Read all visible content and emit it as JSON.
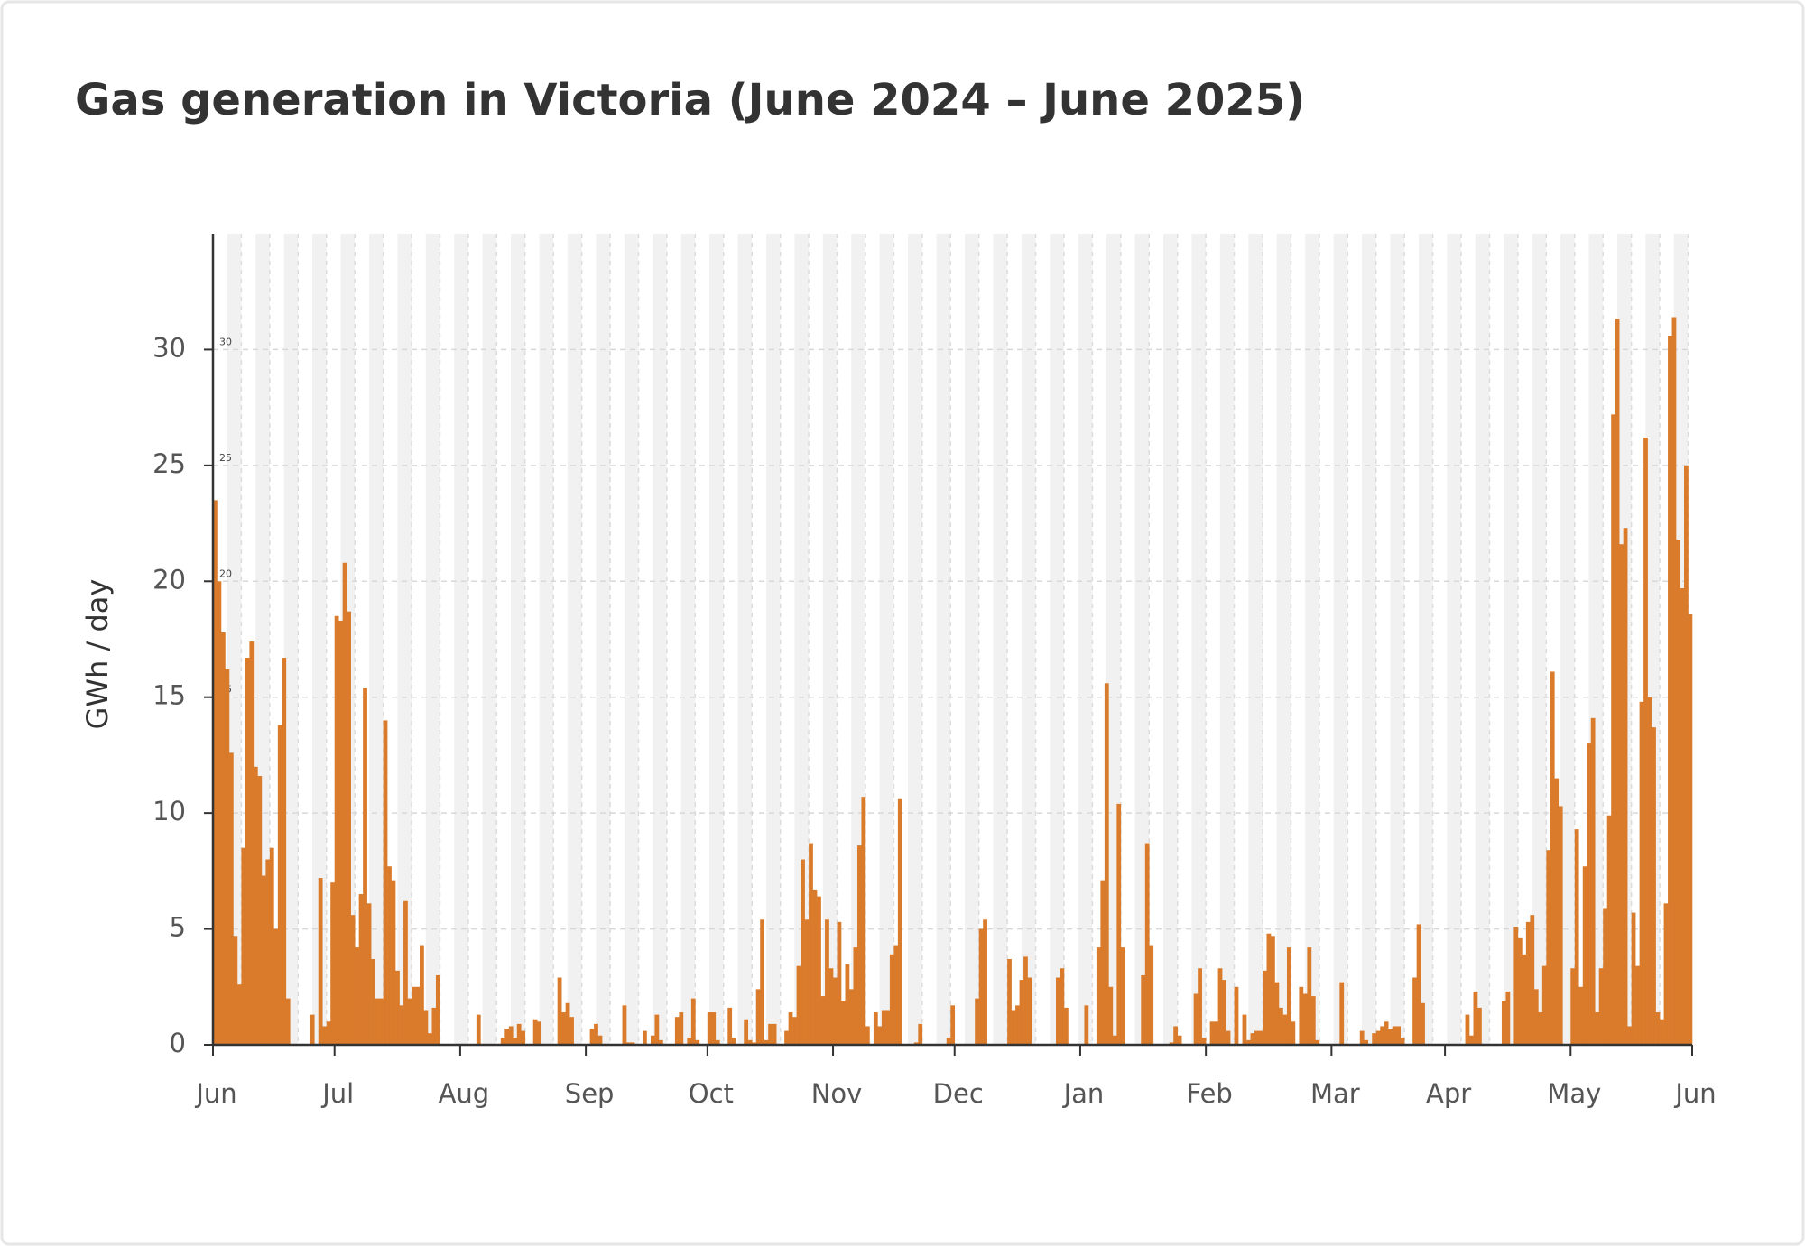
{
  "chart_data": {
    "type": "bar",
    "title": "Gas generation in Victoria (June 2024 – June 2025)",
    "y_label": "GWh / day",
    "color": "#d97b2b",
    "grid": true,
    "xlim": [
      0,
      365
    ],
    "xticks": [
      {
        "value": 0,
        "label": "Jun"
      },
      {
        "value": 30,
        "label": "Jul"
      },
      {
        "value": 61,
        "label": "Aug"
      },
      {
        "value": 92,
        "label": "Sep"
      },
      {
        "value": 122,
        "label": "Oct"
      },
      {
        "value": 153,
        "label": "Nov"
      },
      {
        "value": 183,
        "label": "Dec"
      },
      {
        "value": 214,
        "label": "Jan"
      },
      {
        "value": 245,
        "label": "Feb"
      },
      {
        "value": 276,
        "label": "Mar"
      },
      {
        "value": 304,
        "label": "Apr"
      },
      {
        "value": 335,
        "label": "May"
      },
      {
        "value": 365,
        "label": "Jun"
      }
    ],
    "ylim": [
      0,
      35
    ],
    "yticks": [
      0,
      5,
      10,
      15,
      20,
      25,
      30
    ],
    "values": [
      23.5,
      20,
      17.8,
      16.2,
      12.6,
      4.7,
      2.6,
      8.5,
      16.7,
      17.4,
      12,
      11.6,
      7.3,
      8,
      8.5,
      5,
      13.8,
      16.7,
      2,
      0,
      0,
      0,
      0,
      0,
      1.3,
      0,
      7.2,
      0.8,
      1,
      7,
      18.5,
      18.3,
      20.8,
      18.7,
      5.6,
      4.2,
      6.5,
      15.4,
      6.1,
      3.7,
      2,
      2,
      14,
      7.7,
      7.1,
      3.2,
      1.7,
      6.2,
      2,
      2.5,
      2.5,
      4.3,
      1.5,
      0.5,
      1.6,
      3,
      0,
      0,
      0,
      0,
      0,
      0,
      0,
      0,
      0,
      1.3,
      0,
      0,
      0,
      0,
      0,
      0.3,
      0.7,
      0.8,
      0.3,
      0.9,
      0.6,
      0,
      0,
      1.1,
      1,
      0,
      0,
      0,
      0,
      2.9,
      1.4,
      1.8,
      1.2,
      0,
      0,
      0,
      0,
      0.7,
      0.9,
      0.4,
      0,
      0,
      0,
      0,
      0,
      1.7,
      0.1,
      0.1,
      0,
      0,
      0.6,
      0,
      0.4,
      1.3,
      0.2,
      0,
      0,
      0,
      1.2,
      1.4,
      0,
      0.3,
      2,
      0.2,
      0,
      0,
      1.4,
      1.4,
      0.2,
      0,
      0,
      1.6,
      0.3,
      0,
      0,
      1.1,
      0.2,
      0.1,
      2.4,
      5.4,
      0.2,
      0.9,
      0.9,
      0,
      0,
      0.6,
      1.4,
      1.2,
      3.4,
      8,
      5.4,
      8.7,
      6.7,
      6.4,
      2.1,
      5.4,
      3.3,
      2.9,
      5.3,
      1.9,
      3.5,
      2.4,
      4.2,
      8.6,
      10.7,
      0.8,
      0,
      1.4,
      0.8,
      1.5,
      1.5,
      3.9,
      4.3,
      10.6,
      0,
      0,
      0,
      0.1,
      0.9,
      0,
      0,
      0,
      0,
      0,
      0,
      0.3,
      1.7,
      0,
      0,
      0,
      0,
      0,
      2,
      5,
      5.4,
      0,
      0,
      0,
      0,
      0,
      3.7,
      1.5,
      1.7,
      2.8,
      3.8,
      2.9,
      0,
      0,
      0,
      0,
      0,
      0,
      2.9,
      3.3,
      1.6,
      0,
      0,
      0,
      0,
      1.7,
      0,
      0,
      4.2,
      7.1,
      15.6,
      2.5,
      0.4,
      10.4,
      4.2,
      0,
      0,
      0,
      0,
      3,
      8.7,
      4.3,
      0,
      0,
      0,
      0,
      0.1,
      0.8,
      0.4,
      0,
      0,
      0,
      2.2,
      3.3,
      0.3,
      0,
      1,
      1,
      3.3,
      2.8,
      0.6,
      0,
      2.5,
      0,
      1.3,
      0.2,
      0.5,
      0.6,
      0.6,
      3.2,
      4.8,
      4.7,
      2.7,
      1.6,
      1.3,
      4.2,
      1,
      0,
      2.5,
      2.2,
      4.2,
      2.1,
      0.2,
      0,
      0,
      0,
      0,
      0,
      2.7,
      0,
      0,
      0,
      0,
      0.6,
      0.2,
      0,
      0.5,
      0.6,
      0.8,
      1,
      0.7,
      0.8,
      0.8,
      0.3,
      0,
      0,
      2.9,
      5.2,
      1.8,
      0,
      0,
      0,
      0,
      0,
      0,
      0,
      0,
      0,
      0,
      1.3,
      0.4,
      2.3,
      1.6,
      0,
      0,
      0,
      0,
      0,
      1.9,
      2.3,
      0,
      5.1,
      4.6,
      3.9,
      5.3,
      5.6,
      2.4,
      1.4,
      3.4,
      8.4,
      16.1,
      11.5,
      10.3,
      0,
      0,
      3.3,
      9.3,
      2.5,
      7.7,
      13,
      14.1,
      1.4,
      3.3,
      5.9,
      9.9,
      27.2,
      31.3,
      21.6,
      22.3,
      0.8,
      5.7,
      3.4,
      14.8,
      26.2,
      15,
      13.7,
      1.4,
      1.1,
      6.1,
      30.6,
      31.4,
      21.8,
      19.7,
      25,
      18.6
    ]
  }
}
